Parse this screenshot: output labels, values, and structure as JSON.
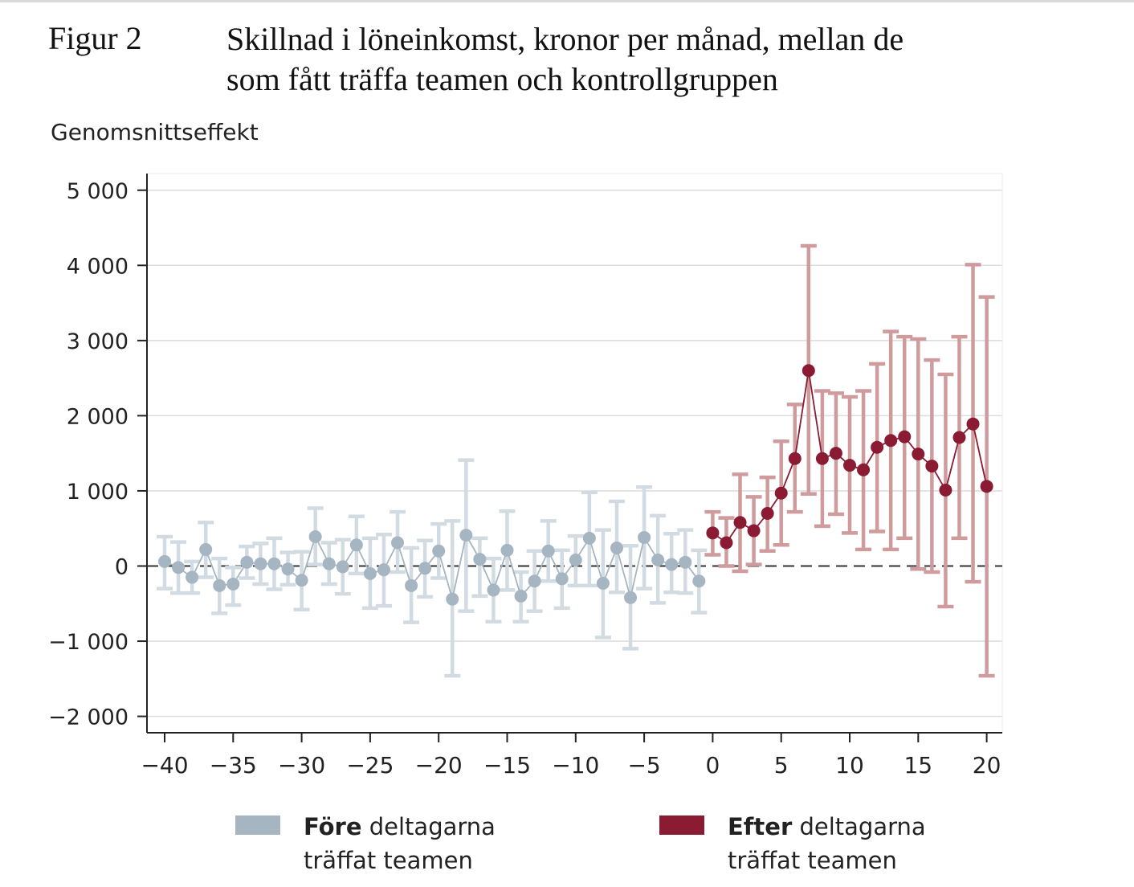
{
  "figure": {
    "label": "Figur 2",
    "title_line1": "Skillnad i löneinkomst, kronor per månad, mellan de",
    "title_line2": "som fått träffa teamen och kontrollgruppen"
  },
  "chart_data": {
    "type": "scatter",
    "title": "Skillnad i löneinkomst, kronor per månad, mellan de som fått träffa teamen och kontrollgruppen",
    "ylabel": "Genomsnittseffekt",
    "xlabel": "",
    "xlim": [
      -41,
      21
    ],
    "ylim": [
      -2200,
      5200
    ],
    "x_ticks": [
      -40,
      -35,
      -30,
      -25,
      -20,
      -15,
      -10,
      -5,
      0,
      5,
      10,
      15,
      20
    ],
    "x_tick_labels": [
      "−40",
      "−35",
      "−30",
      "−25",
      "−20",
      "−15",
      "−10",
      "−5",
      "0",
      "5",
      "10",
      "15",
      "20"
    ],
    "y_ticks": [
      5000,
      4000,
      3000,
      2000,
      1000,
      0,
      -1000,
      -2000
    ],
    "y_tick_labels": [
      "5 000",
      "4 000",
      "3 000",
      "2 000",
      "1 000",
      "0",
      "−1 000",
      "−2 000"
    ],
    "reference_line_y": 0,
    "grid": "horizontal",
    "legend_position": "bottom",
    "series": [
      {
        "name": "Före deltagarna träffat teamen",
        "legend_bold": "Före",
        "legend_rest_line1": " deltagarna",
        "legend_line2": "träffat teamen",
        "color": "#a6b5c2",
        "error_color": "#d2dbe1",
        "line_color": "#a6b5c2",
        "x": [
          -40,
          -39,
          -38,
          -37,
          -36,
          -35,
          -34,
          -33,
          -32,
          -31,
          -30,
          -29,
          -28,
          -27,
          -26,
          -25,
          -24,
          -23,
          -22,
          -21,
          -20,
          -19,
          -18,
          -17,
          -16,
          -15,
          -14,
          -13,
          -12,
          -11,
          -10,
          -9,
          -8,
          -7,
          -6,
          -5,
          -4,
          -3,
          -2,
          -1
        ],
        "y": [
          60,
          -20,
          -150,
          220,
          -260,
          -240,
          50,
          30,
          30,
          -40,
          -190,
          390,
          30,
          -10,
          280,
          -100,
          -50,
          310,
          -260,
          -30,
          200,
          -440,
          410,
          90,
          -320,
          210,
          -400,
          -200,
          200,
          -170,
          80,
          370,
          -230,
          240,
          -420,
          380,
          80,
          20,
          50,
          -200
        ],
        "y_low": [
          -300,
          -360,
          -360,
          -150,
          -630,
          -520,
          -160,
          -240,
          -310,
          -250,
          -580,
          20,
          -240,
          -370,
          -100,
          -560,
          -530,
          -80,
          -750,
          -410,
          -160,
          -1460,
          -600,
          -400,
          -740,
          -320,
          -740,
          -600,
          -200,
          -560,
          -260,
          -260,
          -950,
          -350,
          -1100,
          -300,
          -490,
          -350,
          -360,
          -620
        ],
        "y_high": [
          390,
          320,
          60,
          580,
          100,
          -20,
          260,
          300,
          370,
          180,
          190,
          770,
          310,
          350,
          660,
          370,
          420,
          720,
          240,
          340,
          560,
          600,
          1410,
          370,
          100,
          730,
          -80,
          200,
          600,
          210,
          400,
          980,
          480,
          860,
          270,
          1050,
          670,
          430,
          480,
          210
        ]
      },
      {
        "name": "Efter deltagarna träffat teamen",
        "legend_bold": "Efter",
        "legend_rest_line1": " deltagarna",
        "legend_line2": "träffat teamen",
        "color": "#8b1a33",
        "error_color": "#cf9b9d",
        "line_color": "#8b1a33",
        "x": [
          0,
          1,
          2,
          3,
          4,
          5,
          6,
          7,
          8,
          9,
          10,
          11,
          12,
          13,
          14,
          15,
          16,
          17,
          18,
          19,
          20
        ],
        "y": [
          440,
          310,
          580,
          470,
          700,
          970,
          1430,
          2600,
          1430,
          1500,
          1340,
          1280,
          1580,
          1670,
          1720,
          1490,
          1330,
          1010,
          1710,
          1890,
          1060
        ],
        "y_low": [
          150,
          0,
          -70,
          20,
          200,
          280,
          720,
          960,
          530,
          690,
          440,
          220,
          460,
          220,
          370,
          -40,
          -80,
          -540,
          370,
          -210,
          -1460
        ],
        "y_high": [
          720,
          640,
          1220,
          920,
          1180,
          1660,
          2150,
          4260,
          2330,
          2300,
          2250,
          2330,
          2690,
          3120,
          3050,
          3020,
          2740,
          2550,
          3050,
          4010,
          3580
        ]
      }
    ]
  }
}
